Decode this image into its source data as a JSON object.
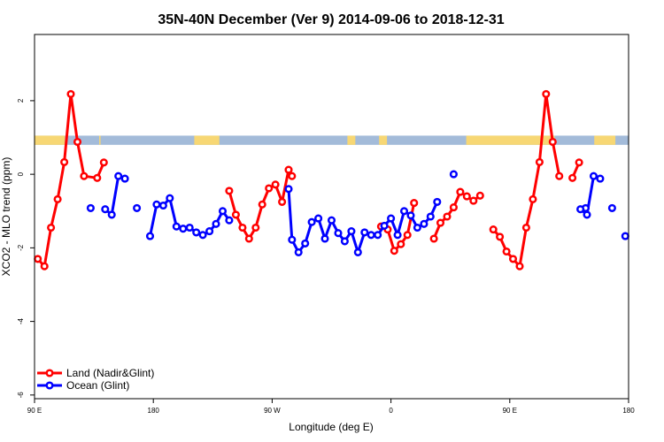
{
  "chart_data": {
    "type": "line",
    "title": "35N-40N December (Ver 9)   2014-09-06 to 2018-12-31",
    "xlabel": "Longitude (deg E)",
    "ylabel": "XCO2 - MLO trend (ppm)",
    "xlim": [
      90,
      540
    ],
    "ylim": [
      -6.1,
      3.8
    ],
    "x_ticks": [
      {
        "value": 90,
        "label": "90 E"
      },
      {
        "value": 180,
        "label": "180"
      },
      {
        "value": 270,
        "label": "90 W"
      },
      {
        "value": 360,
        "label": "0"
      },
      {
        "value": 450,
        "label": "90 E"
      },
      {
        "value": 540,
        "label": "180"
      }
    ],
    "y_ticks": [
      {
        "value": 2,
        "label": "2"
      },
      {
        "value": 0,
        "label": "0"
      },
      {
        "value": -2,
        "label": "-2"
      },
      {
        "value": -4,
        "label": "-4"
      },
      {
        "value": -6,
        "label": "-6"
      }
    ],
    "land_mask_band": {
      "ymin": 0.8,
      "ymax": 1.05,
      "ocean_color": "#a3bbd9",
      "land_color": "#f7d774"
    },
    "legend": {
      "placement": "bottom-left"
    },
    "series": [
      {
        "name": "Land (Nadir&Glint)",
        "color": "#ff0000",
        "segments": [
          [
            [
              92.5,
              -2.3
            ],
            [
              97.5,
              -2.5
            ],
            [
              102.5,
              -1.45
            ],
            [
              107.5,
              -0.68
            ],
            [
              112.5,
              0.33
            ],
            [
              117.5,
              2.18
            ],
            [
              122.5,
              0.88
            ],
            [
              127.5,
              -0.05
            ],
            [
              137.5,
              -0.1
            ],
            [
              142.5,
              0.32
            ]
          ],
          [
            [
              237.5,
              -0.45
            ],
            [
              242.5,
              -1.1
            ],
            [
              247.5,
              -1.45
            ],
            [
              252.5,
              -1.75
            ],
            [
              257.5,
              -1.45
            ],
            [
              262.5,
              -0.82
            ],
            [
              267.5,
              -0.38
            ],
            [
              272.5,
              -0.28
            ],
            [
              277.5,
              -0.75
            ],
            [
              282.5,
              0.12
            ],
            [
              285,
              -0.05
            ]
          ],
          [
            [
              352.5,
              -1.42
            ],
            [
              357.5,
              -1.5
            ],
            [
              362.5,
              -2.08
            ],
            [
              367.5,
              -1.9
            ],
            [
              372.5,
              -1.65
            ],
            [
              377.5,
              -0.78
            ]
          ],
          [
            [
              392.5,
              -1.75
            ],
            [
              397.5,
              -1.32
            ],
            [
              402.5,
              -1.15
            ],
            [
              407.5,
              -0.9
            ],
            [
              412.5,
              -0.48
            ],
            [
              417.5,
              -0.6
            ],
            [
              422.5,
              -0.72
            ],
            [
              427.5,
              -0.58
            ]
          ],
          [
            [
              437.5,
              -1.5
            ],
            [
              442.5,
              -1.7
            ],
            [
              447.5,
              -2.1
            ],
            [
              452.5,
              -2.3
            ],
            [
              457.5,
              -2.5
            ],
            [
              462.5,
              -1.45
            ],
            [
              467.5,
              -0.68
            ],
            [
              472.5,
              0.33
            ],
            [
              477.5,
              2.18
            ],
            [
              482.5,
              0.88
            ],
            [
              487.5,
              -0.05
            ]
          ],
          [
            [
              497.5,
              -0.1
            ],
            [
              502.5,
              0.32
            ]
          ]
        ]
      },
      {
        "name": "Ocean (Glint)",
        "color": "#0000ff",
        "segments": [
          [
            [
              132.5,
              -0.92
            ]
          ],
          [
            [
              143.5,
              -0.95
            ],
            [
              148.5,
              -1.1
            ],
            [
              153.5,
              -0.05
            ],
            [
              158.5,
              -0.12
            ]
          ],
          [
            [
              167.5,
              -0.92
            ]
          ],
          [
            [
              177.5,
              -1.68
            ],
            [
              182.5,
              -0.82
            ],
            [
              187.5,
              -0.85
            ],
            [
              192.5,
              -0.65
            ],
            [
              197.5,
              -1.42
            ],
            [
              202.5,
              -1.48
            ],
            [
              207.5,
              -1.45
            ],
            [
              212.5,
              -1.58
            ],
            [
              217.5,
              -1.65
            ],
            [
              222.5,
              -1.55
            ],
            [
              227.5,
              -1.35
            ],
            [
              232.5,
              -1.0
            ],
            [
              237.5,
              -1.25
            ]
          ],
          [
            [
              282.5,
              -0.4
            ],
            [
              285,
              -1.78
            ],
            [
              290,
              -2.12
            ],
            [
              295,
              -1.88
            ],
            [
              300,
              -1.3
            ],
            [
              305,
              -1.2
            ],
            [
              310,
              -1.75
            ],
            [
              315,
              -1.25
            ],
            [
              320,
              -1.6
            ],
            [
              325,
              -1.82
            ],
            [
              330,
              -1.55
            ],
            [
              335,
              -2.12
            ],
            [
              340,
              -1.58
            ],
            [
              345,
              -1.65
            ],
            [
              350,
              -1.65
            ],
            [
              355,
              -1.4
            ],
            [
              360,
              -1.2
            ],
            [
              365,
              -1.65
            ],
            [
              370,
              -1.0
            ],
            [
              375,
              -1.12
            ],
            [
              380,
              -1.45
            ],
            [
              385,
              -1.35
            ],
            [
              390,
              -1.15
            ],
            [
              395,
              -0.75
            ]
          ],
          [
            [
              407.5,
              0.0
            ]
          ],
          [
            [
              507.5,
              -0.92
            ]
          ],
          [
            [
              503.5,
              -0.95
            ],
            [
              508.5,
              -1.1
            ],
            [
              513.5,
              -0.05
            ],
            [
              518.5,
              -0.12
            ]
          ],
          [
            [
              527.5,
              -0.92
            ]
          ],
          [
            [
              537.5,
              -1.68
            ]
          ]
        ]
      }
    ]
  }
}
